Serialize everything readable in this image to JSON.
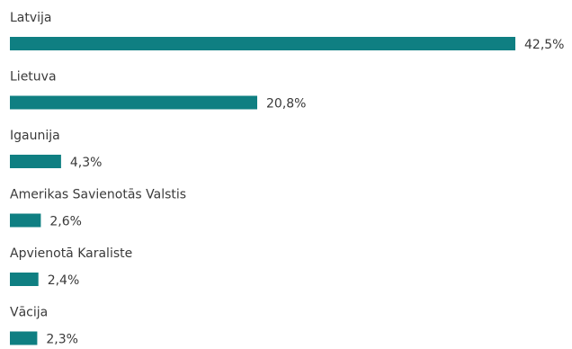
{
  "chart_data": {
    "type": "bar",
    "orientation": "horizontal",
    "categories": [
      "Latvija",
      "Lietuva",
      "Igaunija",
      "Amerikas Savienotās Valstis",
      "Apvienotā Karaliste",
      "Vācija"
    ],
    "values": [
      42.5,
      20.8,
      4.3,
      2.6,
      2.4,
      2.3
    ],
    "value_labels": [
      "42,5%",
      "20,8%",
      "4,3%",
      "2,6%",
      "2,4%",
      "2,3%"
    ],
    "unit": "%",
    "xlim": [
      0,
      42.5
    ],
    "grid": false,
    "legend": "none",
    "bar_color": "#0f7f82"
  }
}
